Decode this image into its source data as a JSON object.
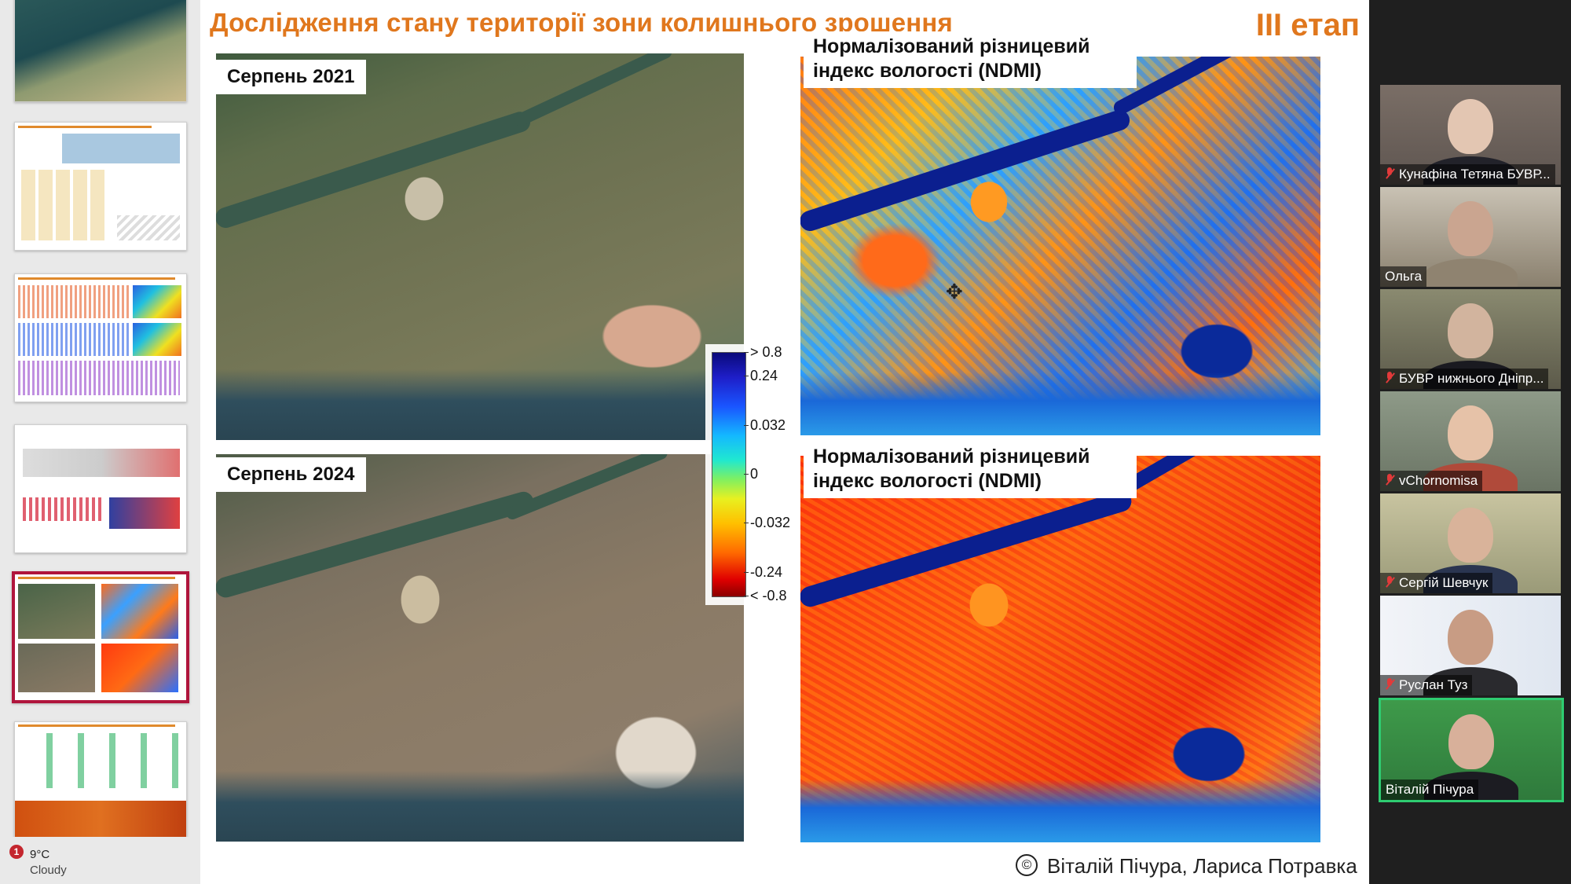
{
  "slide": {
    "title": "Дослідження стану території зони колишнього зрошення",
    "stage": "ІІІ етап",
    "panels": {
      "top_left_label": "Серпень 2021",
      "bottom_left_label": "Серпень 2024",
      "top_right_label": "Нормалізований різницевий індекс вологості (NDMI)",
      "bottom_right_label": "Нормалізований різницевий індекс вологості (NDMI)"
    },
    "colorbar_ticks": [
      "> 0.8",
      "0.24",
      "0.032",
      "0",
      "-0.032",
      "-0.24",
      "< -0.8"
    ],
    "credit": "Віталій Пічура, Лариса Потравка",
    "credit_symbol": "©"
  },
  "weather": {
    "badge": "1",
    "temperature": "9°C",
    "condition": "Cloudy"
  },
  "participants": [
    {
      "name": "Кунафіна Тетяна БУВР...",
      "muted": true,
      "speaking": false
    },
    {
      "name": "Ольга",
      "muted": false,
      "speaking": false
    },
    {
      "name": "БУВР нижнього Дніпр...",
      "muted": true,
      "speaking": false
    },
    {
      "name": "vChornomisa",
      "muted": true,
      "speaking": false
    },
    {
      "name": "Сергій Шевчук",
      "muted": true,
      "speaking": false
    },
    {
      "name": "Руслан Туз",
      "muted": true,
      "speaking": false
    },
    {
      "name": "Віталій Пічура",
      "muted": false,
      "speaking": true
    }
  ],
  "colors": {
    "title_orange": "#e0771d",
    "active_thumb_border": "#b0153c",
    "speaking_border": "#2ecc71",
    "mute_red": "#e23a3a"
  }
}
